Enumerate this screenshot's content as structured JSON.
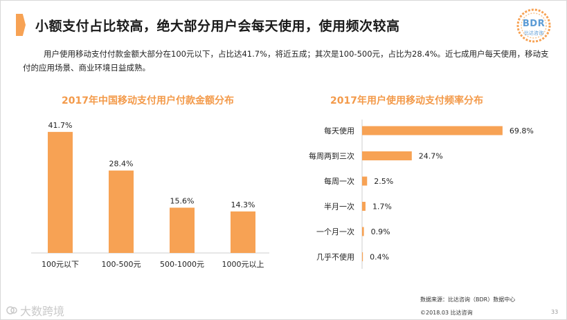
{
  "header": {
    "title": "小额支付占比较高，绝大部分用户会每天使用，使用频次较高",
    "logo_text": "BDR",
    "logo_sub": "比达咨询"
  },
  "summary": "用户使用移动支付付款金额大部分在100元以下，占比达41.7%，将近五成；其次是100-500元，占比为28.4%。近七成用户每天使用，移动支付的应用场景、商业环境日益成熟。",
  "colors": {
    "accent": "#f7a254",
    "title_orange": "#f39a4a"
  },
  "chart_data": [
    {
      "type": "bar",
      "title": "2017年中国移动支付用户付款金额分布",
      "categories": [
        "100元以下",
        "100-500元",
        "500-1000元",
        "1000元以上"
      ],
      "values": [
        41.7,
        28.4,
        15.6,
        14.3
      ],
      "value_labels": [
        "41.7%",
        "28.4%",
        "15.6%",
        "14.3%"
      ],
      "unit": "%",
      "ylim": [
        0,
        45
      ],
      "xlabel": "",
      "ylabel": ""
    },
    {
      "type": "bar",
      "orientation": "horizontal",
      "title": "2017年用户使用移动支付频率分布",
      "categories": [
        "每天使用",
        "每周两到三次",
        "每周一次",
        "半月一次",
        "一个月一次",
        "几乎不使用"
      ],
      "values": [
        69.8,
        24.7,
        2.5,
        1.7,
        0.9,
        0.4
      ],
      "value_labels": [
        "69.8%",
        "24.7%",
        "2.5%",
        "1.7%",
        "0.9%",
        "0.4%"
      ],
      "unit": "%",
      "xlim": [
        0,
        75
      ]
    }
  ],
  "footer": {
    "source": "数据来源：比达咨询（BDR）数据中心",
    "copyright": "©2018.03 比达咨询",
    "page": "33",
    "watermark": "大数跨境"
  }
}
